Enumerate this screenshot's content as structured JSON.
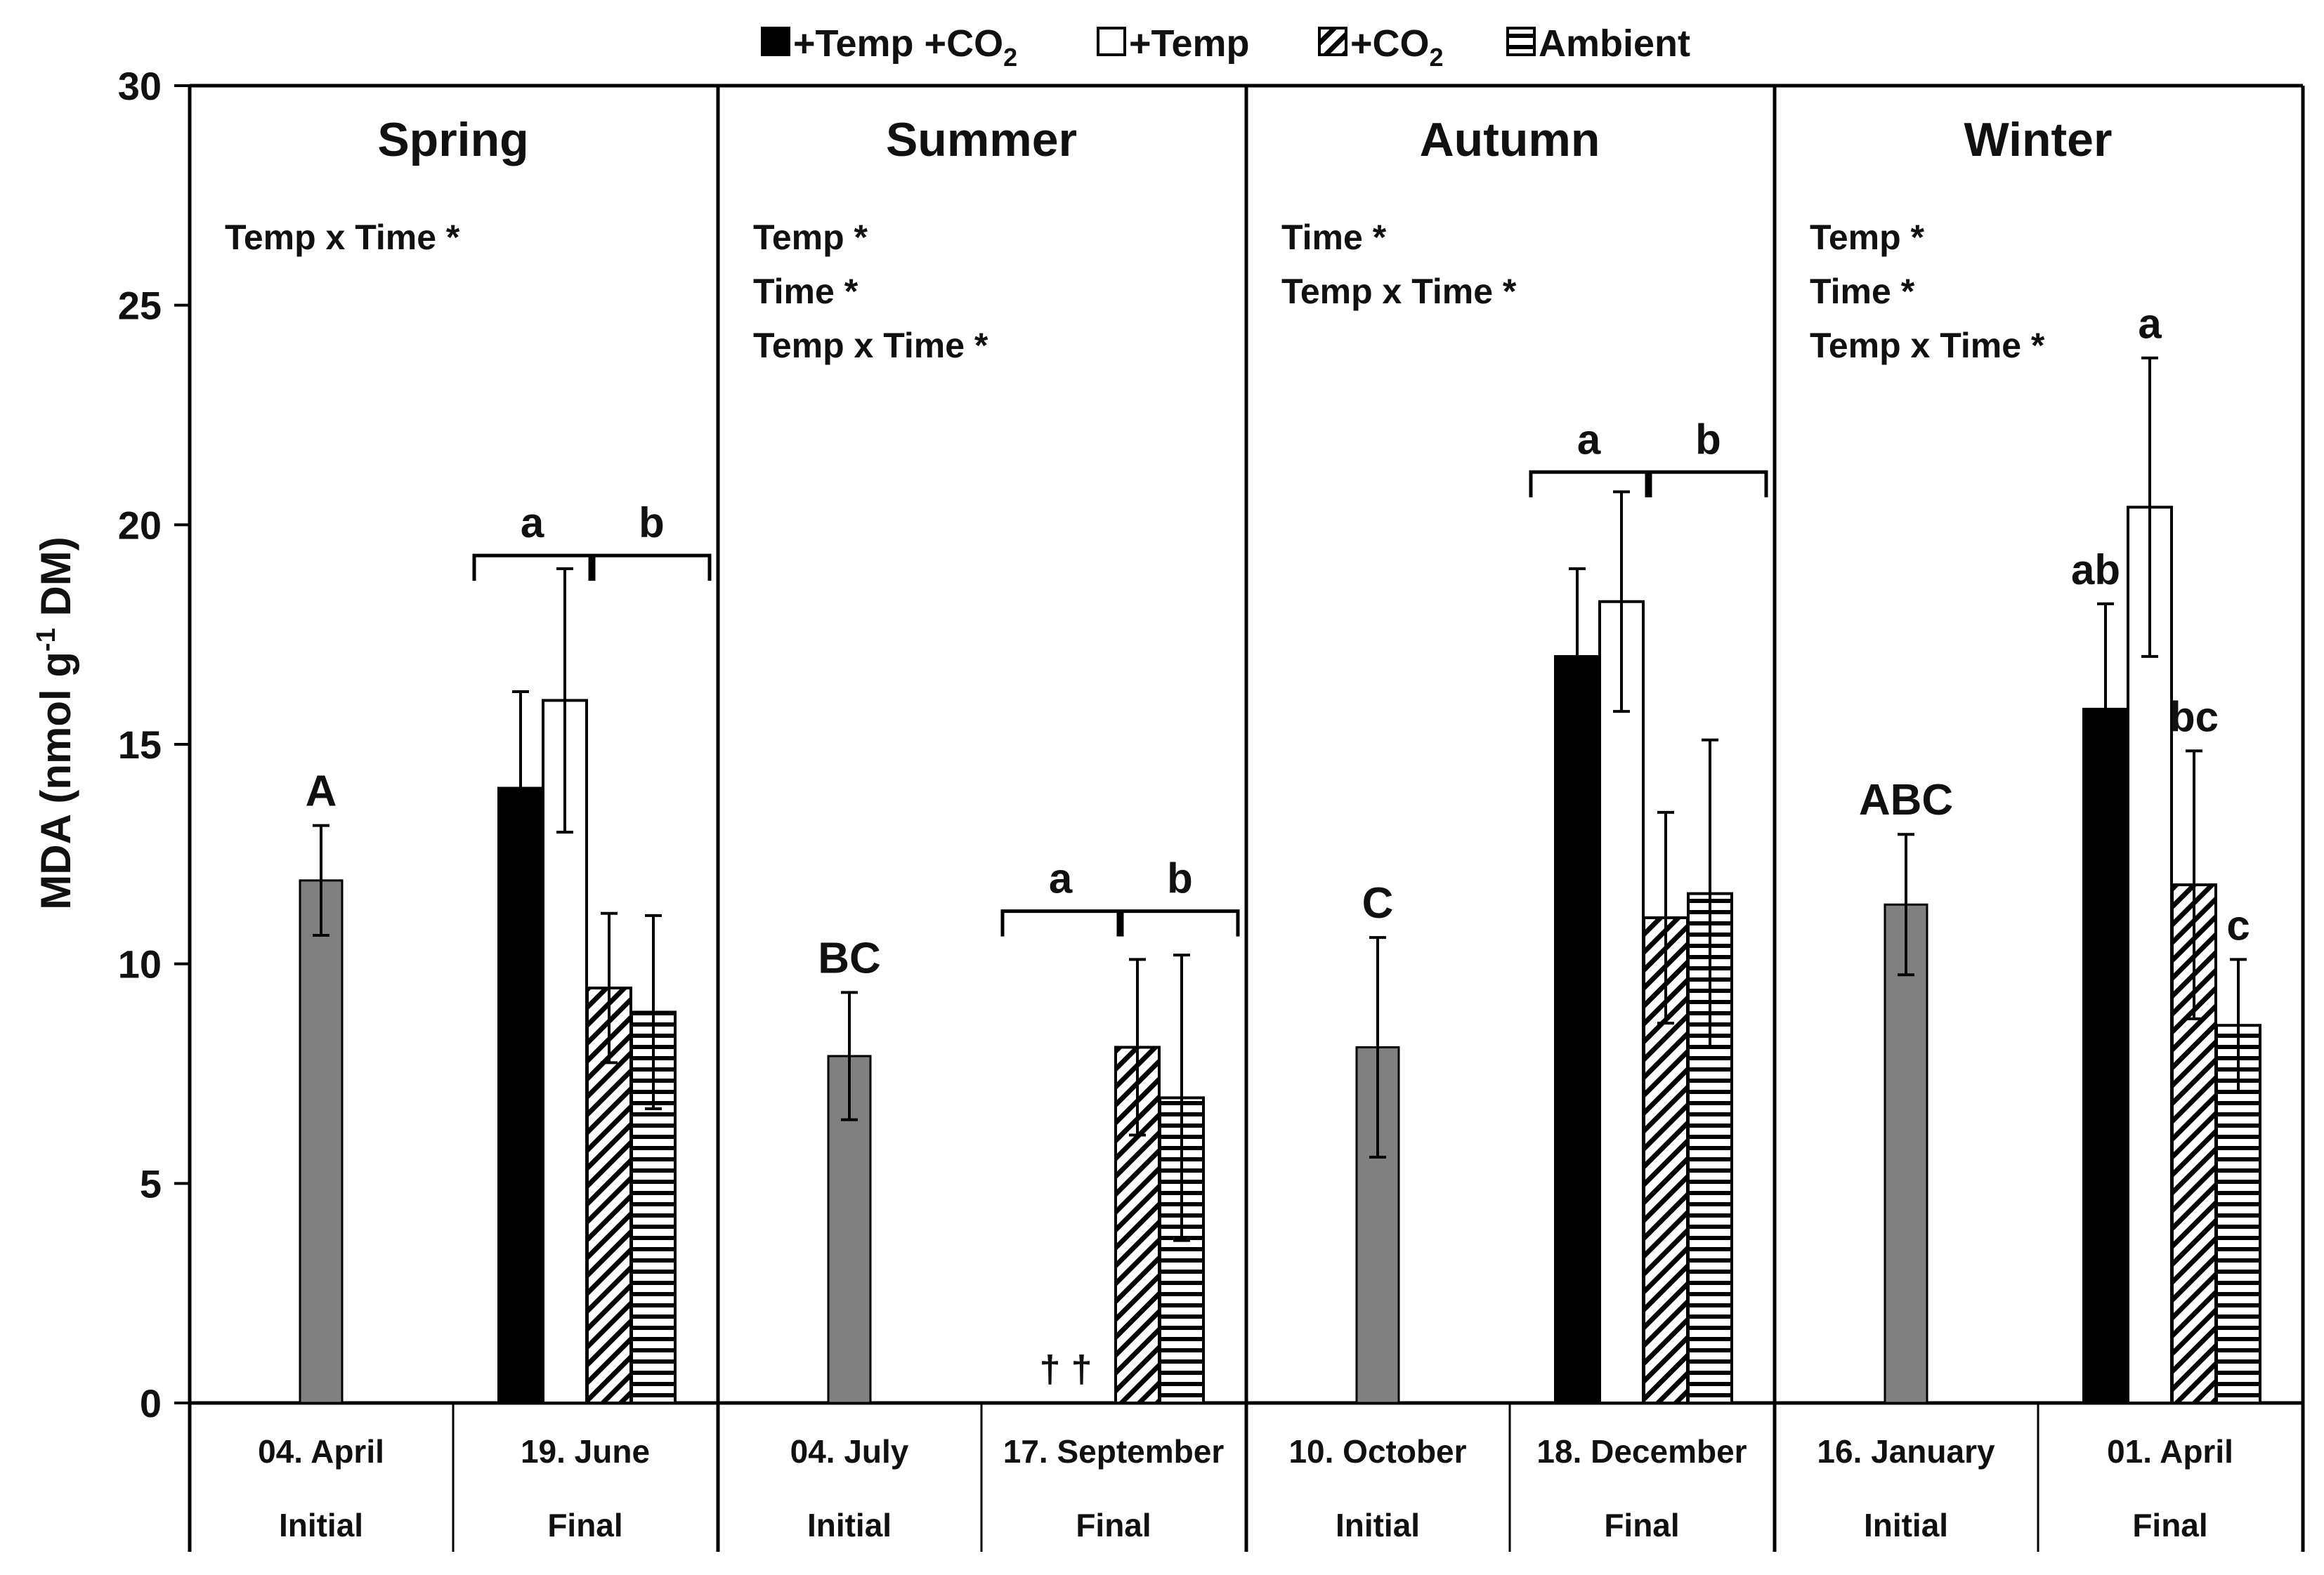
{
  "chart_data": {
    "type": "bar",
    "ylabel": "MDA (nmol g",
    "ylabel_sup": "-1",
    "ylabel_end": " DM)",
    "ylim": [
      0,
      30
    ],
    "yticks": [
      "0",
      "5",
      "10",
      "15",
      "20",
      "25",
      "30"
    ],
    "grid": false,
    "legend_position": "top",
    "legend": [
      {
        "name": "+Temp +CO",
        "sub": "2",
        "pattern": "solid"
      },
      {
        "name": "+Temp",
        "sub": "",
        "pattern": "white"
      },
      {
        "name": "+CO",
        "sub": "2",
        "pattern": "diag"
      },
      {
        "name": "Ambient",
        "sub": "",
        "pattern": "horiz"
      }
    ],
    "colors": {
      "initial": "#808080",
      "solid": "#000000",
      "outline": "#000000",
      "background": "#ffffff"
    },
    "panels": [
      {
        "title": "Spring",
        "stats": [
          "Temp x Time *"
        ],
        "initial": {
          "date": "04. April",
          "phase": "Initial",
          "value": 11.9,
          "err": 1.25,
          "letter": "A"
        },
        "final": {
          "date": "19. June",
          "phase": "Final",
          "values": [
            14.0,
            16.0,
            9.45,
            8.9
          ],
          "errs": [
            2.2,
            3.0,
            1.7,
            2.2
          ],
          "letters": [
            "",
            "",
            "",
            ""
          ],
          "brackets": [
            {
              "label": "a",
              "top": 19.3
            },
            {
              "label": "b",
              "top": 19.3
            }
          ],
          "daggers": ""
        }
      },
      {
        "title": "Summer",
        "stats": [
          "Temp *",
          "Time *",
          "Temp x Time *"
        ],
        "initial": {
          "date": "04. July",
          "phase": "Initial",
          "value": 7.9,
          "err": 1.45,
          "letter": "BC"
        },
        "final": {
          "date": "17. September",
          "phase": "Final",
          "values": [
            null,
            null,
            8.1,
            6.95
          ],
          "errs": [
            0,
            0,
            2.0,
            3.25
          ],
          "letters": [
            "",
            "",
            "",
            ""
          ],
          "brackets": [
            {
              "label": "a",
              "top": 11.2
            },
            {
              "label": "b",
              "top": 11.2
            }
          ],
          "daggers": "† †"
        }
      },
      {
        "title": "Autumn",
        "stats": [
          "Time *",
          "Temp x Time *"
        ],
        "initial": {
          "date": "10. October",
          "phase": "Initial",
          "value": 8.1,
          "err": 2.5,
          "letter": "C"
        },
        "final": {
          "date": "18. December",
          "phase": "Final",
          "values": [
            17.0,
            18.25,
            11.05,
            11.6
          ],
          "errs": [
            2.0,
            2.5,
            2.4,
            3.5
          ],
          "letters": [
            "",
            "",
            "",
            ""
          ],
          "brackets": [
            {
              "label": "a",
              "top": 21.2
            },
            {
              "label": "b",
              "top": 21.2
            }
          ],
          "daggers": ""
        }
      },
      {
        "title": "Winter",
        "stats": [
          "Temp *",
          "Time *",
          "Temp x Time *"
        ],
        "initial": {
          "date": "16. January",
          "phase": "Initial",
          "value": 11.35,
          "err": 1.6,
          "letter": "ABC"
        },
        "final": {
          "date": "01. April",
          "phase": "Final",
          "values": [
            15.8,
            20.4,
            11.8,
            8.6
          ],
          "errs": [
            2.4,
            3.4,
            3.05,
            1.5
          ],
          "letters": [
            "ab",
            "a",
            "bc",
            "c"
          ],
          "brackets": [],
          "daggers": ""
        }
      }
    ]
  }
}
